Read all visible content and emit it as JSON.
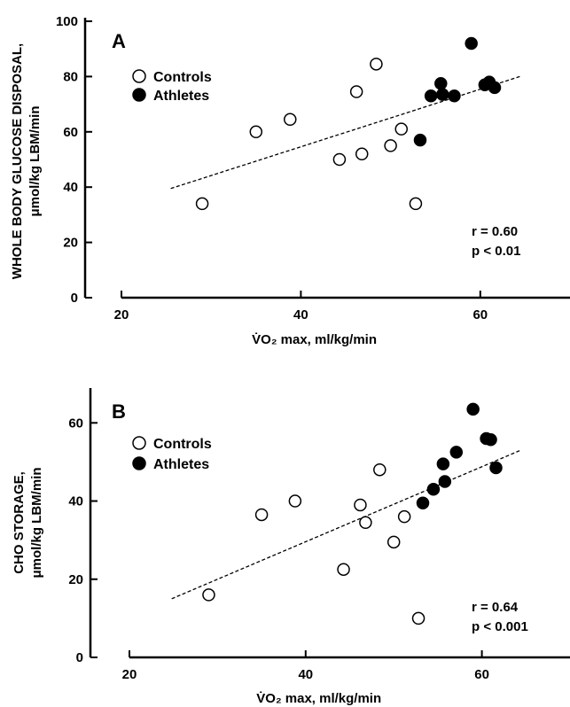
{
  "chart_data": [
    {
      "type": "scatter",
      "panel_label": "A",
      "xlabel": "V̇O₂ max, ml/kg/min",
      "ylabel": [
        "WHOLE BODY GLUCOSE DISPOSAL,",
        "μmol/kg LBM/min"
      ],
      "xlim": [
        20,
        70
      ],
      "ylim": [
        0,
        100
      ],
      "xticks": [
        20,
        40,
        60
      ],
      "yticks": [
        0,
        20,
        40,
        60,
        80,
        100
      ],
      "legend": [
        "Controls",
        "Athletes"
      ],
      "legend_position": "top-left",
      "stats": [
        "r = 0.60",
        "p < 0.01"
      ],
      "series": [
        {
          "name": "Controls",
          "marker": "open-circle",
          "points": [
            [
              29,
              34
            ],
            [
              35,
              60
            ],
            [
              38.8,
              64.5
            ],
            [
              44.3,
              50
            ],
            [
              46.2,
              74.5
            ],
            [
              46.8,
              52
            ],
            [
              48.4,
              84.5
            ],
            [
              50,
              55
            ],
            [
              51.2,
              61
            ],
            [
              52.8,
              34
            ]
          ]
        },
        {
          "name": "Athletes",
          "marker": "filled-circle",
          "points": [
            [
              53.3,
              57
            ],
            [
              54.5,
              73
            ],
            [
              55.6,
              77.5
            ],
            [
              55.8,
              73.5
            ],
            [
              57.1,
              73
            ],
            [
              59,
              92
            ],
            [
              60.5,
              77
            ],
            [
              61,
              78
            ],
            [
              61.6,
              76
            ]
          ]
        }
      ],
      "fit_line": [
        [
          25.5,
          39.5
        ],
        [
          64.4,
          80
        ]
      ]
    },
    {
      "type": "scatter",
      "panel_label": "B",
      "xlabel": "V̇O₂ max, ml/kg/min",
      "ylabel": [
        "CHO STORAGE,",
        "μmol/kg LBM/min"
      ],
      "xlim": [
        20,
        70
      ],
      "ylim": [
        0,
        68
      ],
      "xticks": [
        20,
        40,
        60
      ],
      "yticks": [
        0,
        20,
        40,
        60
      ],
      "legend": [
        "Controls",
        "Athletes"
      ],
      "legend_position": "top-left",
      "stats": [
        "r = 0.64",
        "p < 0.001"
      ],
      "series": [
        {
          "name": "Controls",
          "marker": "open-circle",
          "points": [
            [
              29,
              16
            ],
            [
              35,
              36.5
            ],
            [
              38.8,
              40
            ],
            [
              44.3,
              22.5
            ],
            [
              46.2,
              39
            ],
            [
              46.8,
              34.5
            ],
            [
              48.4,
              48
            ],
            [
              50,
              29.5
            ],
            [
              51.2,
              36
            ],
            [
              52.8,
              10
            ]
          ]
        },
        {
          "name": "Athletes",
          "marker": "filled-circle",
          "points": [
            [
              53.3,
              39.5
            ],
            [
              54.5,
              43
            ],
            [
              55.6,
              49.5
            ],
            [
              55.8,
              45
            ],
            [
              57.1,
              52.5
            ],
            [
              59,
              63.5
            ],
            [
              60.5,
              56
            ],
            [
              61,
              55.7
            ],
            [
              61.6,
              48.5
            ]
          ]
        }
      ],
      "fit_line": [
        [
          24.8,
          15
        ],
        [
          64.4,
          53
        ]
      ]
    }
  ]
}
